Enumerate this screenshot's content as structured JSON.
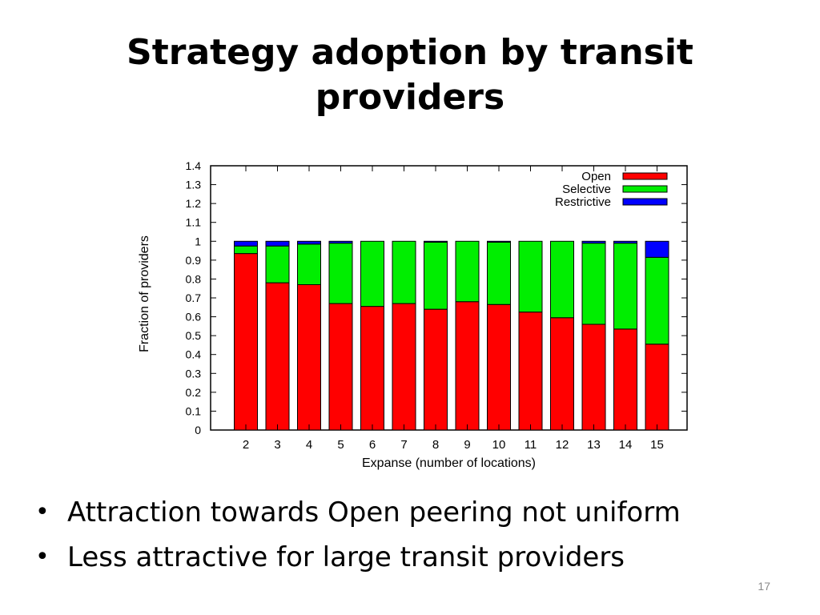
{
  "slide": {
    "title_lines": [
      "Strategy adoption by transit",
      "providers"
    ],
    "bullets": [
      "Attraction towards Open peering not uniform",
      "Less attractive for large transit providers"
    ],
    "page_number": "17"
  },
  "colors": {
    "open": "#ff0000",
    "selective": "#00ee00",
    "restrictive": "#0000ff"
  },
  "chart_data": {
    "type": "bar",
    "stacked": true,
    "categories": [
      "2",
      "3",
      "4",
      "5",
      "6",
      "7",
      "8",
      "9",
      "10",
      "11",
      "12",
      "13",
      "14",
      "15"
    ],
    "series": [
      {
        "name": "Open",
        "color": "#ff0000",
        "values": [
          0.935,
          0.78,
          0.77,
          0.67,
          0.655,
          0.67,
          0.64,
          0.68,
          0.665,
          0.625,
          0.595,
          0.56,
          0.535,
          0.455
        ]
      },
      {
        "name": "Selective",
        "color": "#00ee00",
        "values": [
          0.04,
          0.195,
          0.215,
          0.32,
          0.345,
          0.33,
          0.355,
          0.32,
          0.33,
          0.375,
          0.405,
          0.43,
          0.455,
          0.46
        ]
      },
      {
        "name": "Restrictive",
        "color": "#0000ff",
        "values": [
          0.025,
          0.025,
          0.015,
          0.01,
          0.0,
          0.0,
          0.005,
          0.0,
          0.005,
          0.0,
          0.0,
          0.01,
          0.01,
          0.085
        ]
      }
    ],
    "title": "",
    "xlabel": "Expanse (number of locations)",
    "ylabel": "Fraction of providers",
    "ylim": [
      0,
      1.4
    ],
    "yticks": [
      "0",
      "0.1",
      "0.2",
      "0.3",
      "0.4",
      "0.5",
      "0.6",
      "0.7",
      "0.8",
      "0.9",
      "1",
      "1.1",
      "1.2",
      "1.3",
      "1.4"
    ],
    "grid": false,
    "legend_position": "top-right"
  }
}
